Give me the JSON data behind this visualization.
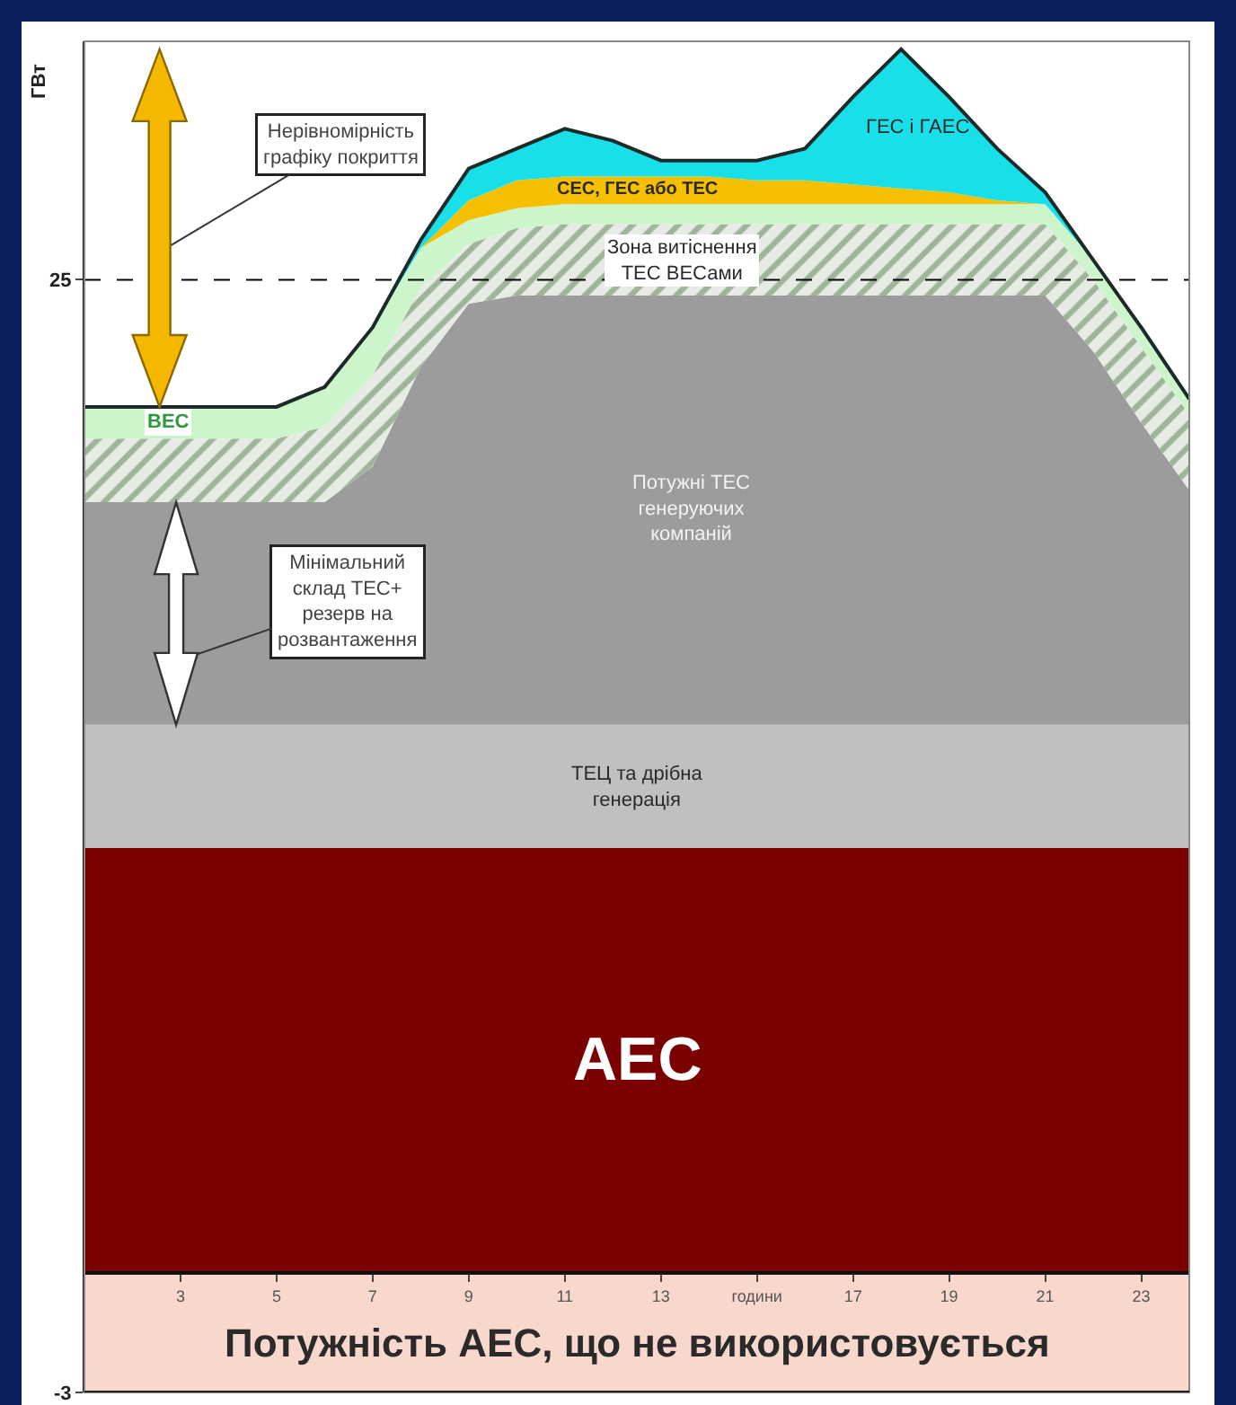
{
  "chart_data": {
    "type": "area",
    "stacked": true,
    "ylabel": "ГВт",
    "x": [
      1,
      2,
      3,
      4,
      5,
      6,
      7,
      8,
      9,
      10,
      11,
      12,
      13,
      14,
      15,
      16,
      17,
      18,
      19,
      20,
      21,
      22,
      23,
      24
    ],
    "xlim": [
      1,
      24
    ],
    "xticks": [
      3,
      5,
      7,
      9,
      11,
      13,
      {
        "value": 15,
        "label": "години"
      },
      17,
      19,
      21,
      23
    ],
    "ylim": [
      -3,
      31
    ],
    "yticks": [
      25,
      -3
    ],
    "grid": false,
    "legend": false,
    "series": [
      {
        "name": "АЕС",
        "color": "#7b0000",
        "values": [
          10.7,
          10.7,
          10.7,
          10.7,
          10.7,
          10.7,
          10.7,
          10.7,
          10.7,
          10.7,
          10.7,
          10.7,
          10.7,
          10.7,
          10.7,
          10.7,
          10.7,
          10.7,
          10.7,
          10.7,
          10.7,
          10.7,
          10.7,
          10.7
        ]
      },
      {
        "name": "ТЕЦ та дрібна генерація",
        "color": "#c0c0c0",
        "values": [
          3.1,
          3.1,
          3.1,
          3.1,
          3.1,
          3.1,
          3.1,
          3.1,
          3.1,
          3.1,
          3.1,
          3.1,
          3.1,
          3.1,
          3.1,
          3.1,
          3.1,
          3.1,
          3.1,
          3.1,
          3.1,
          3.1,
          3.1,
          3.1
        ]
      },
      {
        "name": "Потужні ТЕС генеруючих компаній",
        "color": "#9c9c9c",
        "values": [
          5.6,
          5.6,
          5.6,
          5.6,
          5.6,
          5.6,
          6.5,
          9.0,
          10.6,
          10.8,
          10.8,
          10.8,
          10.8,
          10.8,
          10.8,
          10.8,
          10.8,
          10.8,
          10.8,
          10.8,
          10.8,
          9.4,
          7.6,
          5.9
        ]
      },
      {
        "name": "Зона витіснення ТЕС ВЕСами",
        "color": "#9fb59a",
        "values": [
          1.6,
          1.6,
          1.6,
          1.6,
          1.6,
          1.9,
          2.3,
          2.0,
          1.5,
          1.7,
          1.8,
          1.8,
          1.8,
          1.8,
          1.8,
          1.8,
          1.8,
          1.8,
          1.8,
          1.8,
          1.8,
          1.8,
          1.9,
          1.9
        ]
      },
      {
        "name": "ВЕС",
        "color": "#ccf5cc",
        "values": [
          0.8,
          0.8,
          0.8,
          0.8,
          0.8,
          1.0,
          1.2,
          1.0,
          0.6,
          0.5,
          0.5,
          0.5,
          0.5,
          0.5,
          0.5,
          0.5,
          0.5,
          0.5,
          0.5,
          0.5,
          0.5,
          0.5,
          0.5,
          0.4
        ]
      },
      {
        "name": "СЕС, ГЕС або ТЕС",
        "color": "#f5c000",
        "values": [
          0,
          0,
          0,
          0,
          0,
          0,
          0,
          0,
          0.5,
          0.7,
          0.7,
          0.7,
          0.7,
          0.7,
          0.6,
          0.6,
          0.5,
          0.4,
          0.3,
          0.1,
          0,
          0,
          0,
          0
        ]
      },
      {
        "name": "ГЕС і ГАЕС",
        "color": "#19e0e8",
        "values": [
          0,
          0,
          0,
          0,
          0,
          0,
          0,
          0.2,
          0.8,
          0.8,
          1.2,
          0.9,
          0.4,
          0.4,
          0.5,
          0.8,
          2.2,
          3.5,
          2.4,
          1.3,
          0.3,
          0,
          0,
          0
        ]
      }
    ],
    "bands": [
      {
        "axis": "y",
        "from": -3,
        "to": 0,
        "label": "Потужність АЕС, що не використовується",
        "color": "#f8d8cc"
      }
    ],
    "ref_lines": [
      {
        "axis": "y",
        "value": 25,
        "line_style": "dashed",
        "color": "#000000"
      }
    ],
    "annotations": [
      "Нерівномірність графіку покриття",
      "Мінімальний склад ТЕС+ резерв на розвантаження"
    ]
  }
}
